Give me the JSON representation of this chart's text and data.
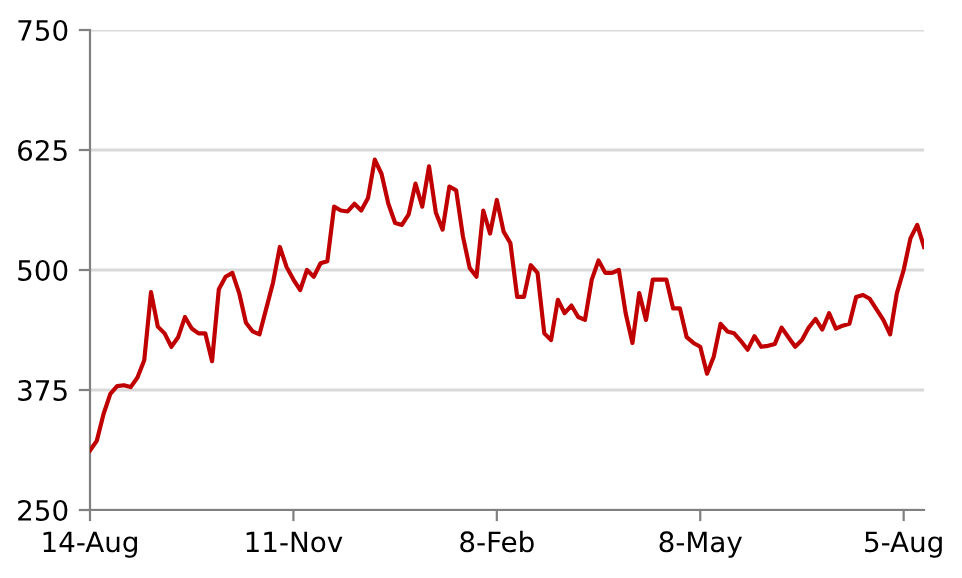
{
  "chart_data": {
    "type": "line",
    "categories": [
      "14-Aug",
      null,
      null,
      null,
      null,
      null,
      null,
      null,
      null,
      null,
      null,
      null,
      null,
      null,
      null,
      null,
      null,
      null,
      null,
      null,
      null,
      null,
      null,
      null,
      null,
      null,
      null,
      null,
      null,
      null,
      "11-Nov",
      null,
      null,
      null,
      null,
      null,
      null,
      null,
      null,
      null,
      null,
      null,
      null,
      null,
      null,
      null,
      null,
      null,
      null,
      null,
      null,
      null,
      null,
      null,
      null,
      null,
      null,
      null,
      null,
      null,
      "8-Feb",
      null,
      null,
      null,
      null,
      null,
      null,
      null,
      null,
      null,
      null,
      null,
      null,
      null,
      null,
      null,
      null,
      null,
      null,
      null,
      null,
      null,
      null,
      null,
      null,
      null,
      null,
      null,
      null,
      null,
      "8-May",
      null,
      null,
      null,
      null,
      null,
      null,
      null,
      null,
      null,
      null,
      null,
      null,
      null,
      null,
      null,
      null,
      null,
      null,
      null,
      null,
      null,
      null,
      null,
      null,
      null,
      null,
      null,
      null,
      null,
      "5-Aug",
      null,
      null,
      null
    ],
    "series": [
      {
        "color": "#c00000",
        "values": [
          312,
          322,
          350,
          371,
          379,
          380,
          378,
          388,
          406,
          477,
          441,
          434,
          420,
          430,
          451,
          439,
          434,
          434,
          405,
          480,
          493,
          497,
          476,
          445,
          436,
          433,
          460,
          487,
          524,
          503,
          490,
          479,
          500,
          493,
          507,
          509,
          566,
          562,
          561,
          569,
          562,
          575,
          615,
          600,
          569,
          549,
          547,
          558,
          590,
          566,
          608,
          560,
          542,
          587,
          583,
          535,
          502,
          493,
          562,
          538,
          573,
          540,
          528,
          472,
          472,
          505,
          497,
          434,
          427,
          469,
          455,
          463,
          451,
          448,
          490,
          510,
          497,
          497,
          500,
          455,
          424,
          476,
          448,
          490,
          490,
          490,
          460,
          460,
          430,
          424,
          420,
          392,
          410,
          444,
          436,
          434,
          426,
          417,
          431,
          420,
          421,
          423,
          440,
          430,
          420,
          427,
          440,
          449,
          438,
          455,
          439,
          442,
          444,
          472,
          474,
          470,
          459,
          448,
          433,
          476,
          500,
          533,
          547,
          524
        ]
      }
    ],
    "ylim": [
      250,
      750
    ],
    "yticks": [
      250,
      375,
      500,
      625,
      750
    ],
    "grid": "y",
    "marker": "none",
    "line_style": "solid"
  }
}
